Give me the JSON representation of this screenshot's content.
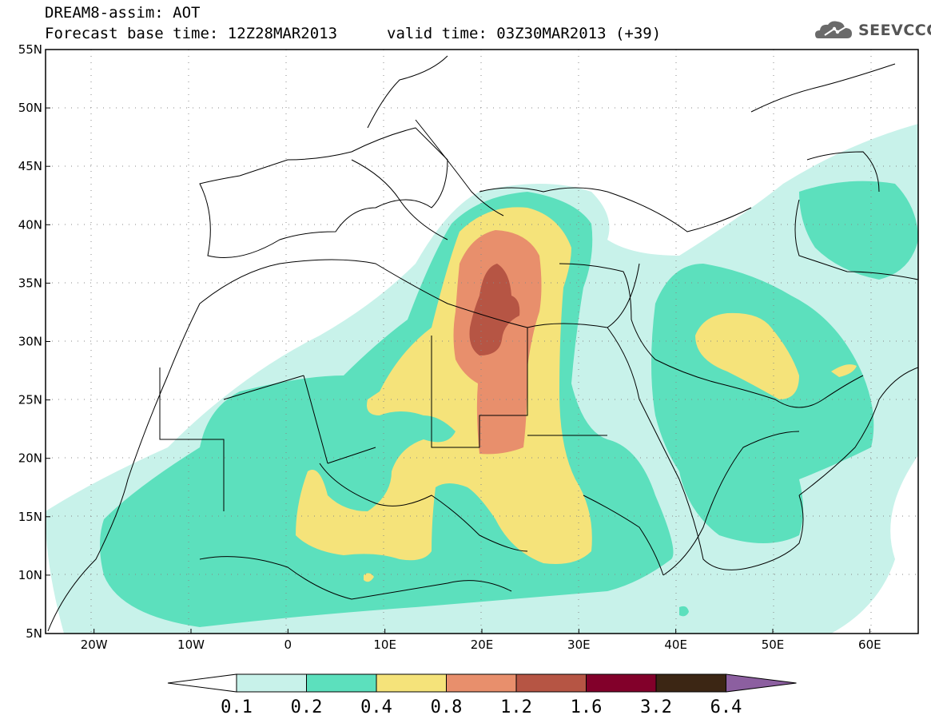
{
  "title": {
    "line1": "DREAM8-assim: AOT",
    "line2": "Forecast base time: 12Z28MAR2013",
    "valid": "valid time: 03Z30MAR2013 (+39)"
  },
  "logo": {
    "text": "SEEVCCC",
    "icon": "cloud-icon"
  },
  "map": {
    "lat_range": [
      5,
      55
    ],
    "lon_range": [
      -25,
      65
    ],
    "lat_ticks": [
      "55N",
      "50N",
      "45N",
      "40N",
      "35N",
      "30N",
      "25N",
      "20N",
      "15N",
      "10N",
      "5N"
    ],
    "lon_ticks": [
      "20W",
      "10W",
      "0",
      "10E",
      "20E",
      "30E",
      "40E",
      "50E",
      "60E"
    ],
    "grid": true
  },
  "colorbar": {
    "labels": [
      "0.1",
      "0.2",
      "0.4",
      "0.8",
      "1.2",
      "1.6",
      "3.2",
      "6.4"
    ],
    "colors": [
      "#ffffff",
      "#c8f2ea",
      "#5ce0bd",
      "#f5e37a",
      "#e88f6c",
      "#b65544",
      "#82002a",
      "#3c2614",
      "#8c5fa0"
    ]
  }
}
